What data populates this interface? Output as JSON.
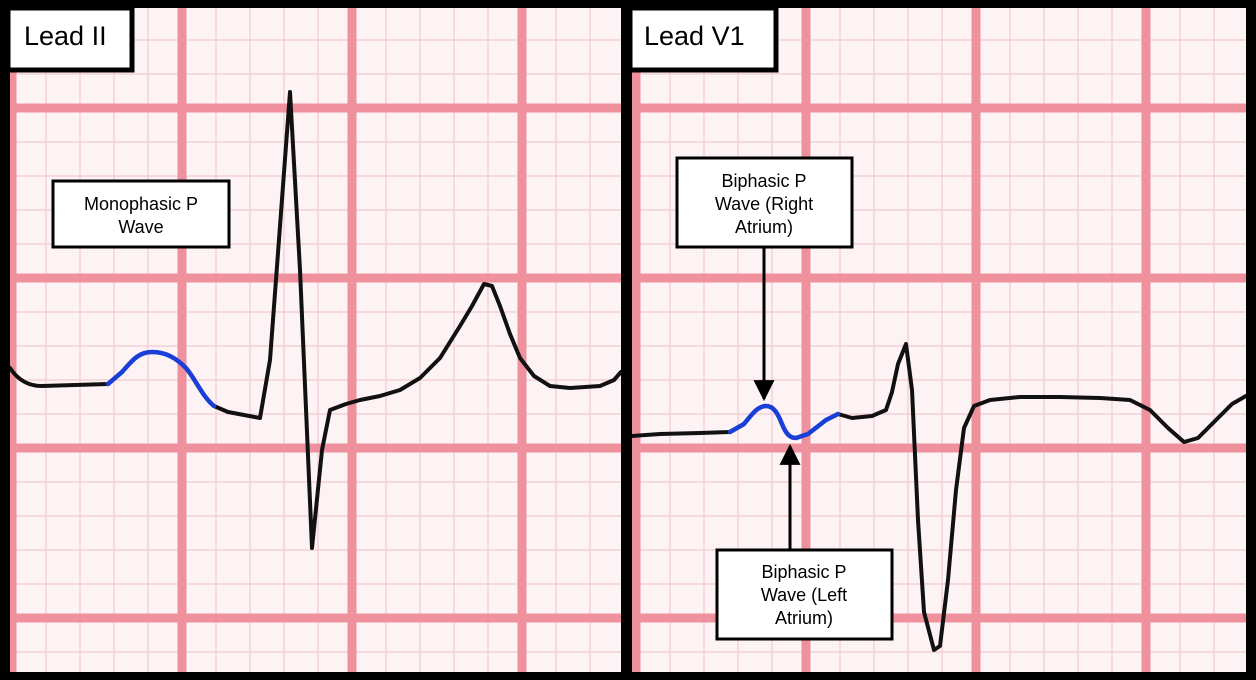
{
  "colors": {
    "paper": "#fdf3f5",
    "minor_grid": "#f1c9d0",
    "major_grid": "#ef909d",
    "trace": "#111111",
    "p_wave_highlight": "#1a3fd6",
    "frame": "#000000",
    "label_bg": "#ffffff"
  },
  "panels": [
    {
      "id": "lead-ii",
      "label": "Lead II",
      "callouts": [
        {
          "lines": [
            "Monophasic P",
            "Wave"
          ]
        }
      ]
    },
    {
      "id": "lead-v1",
      "label": "Lead V1",
      "callouts": [
        {
          "lines": [
            "Biphasic P",
            "Wave (Right",
            "Atrium)"
          ]
        },
        {
          "lines": [
            "Biphasic P",
            "Wave (Left",
            "Atrium)"
          ]
        }
      ]
    }
  ],
  "icons": {
    "arrow": "arrow-down-icon",
    "arrow_up": "arrow-up-icon"
  }
}
